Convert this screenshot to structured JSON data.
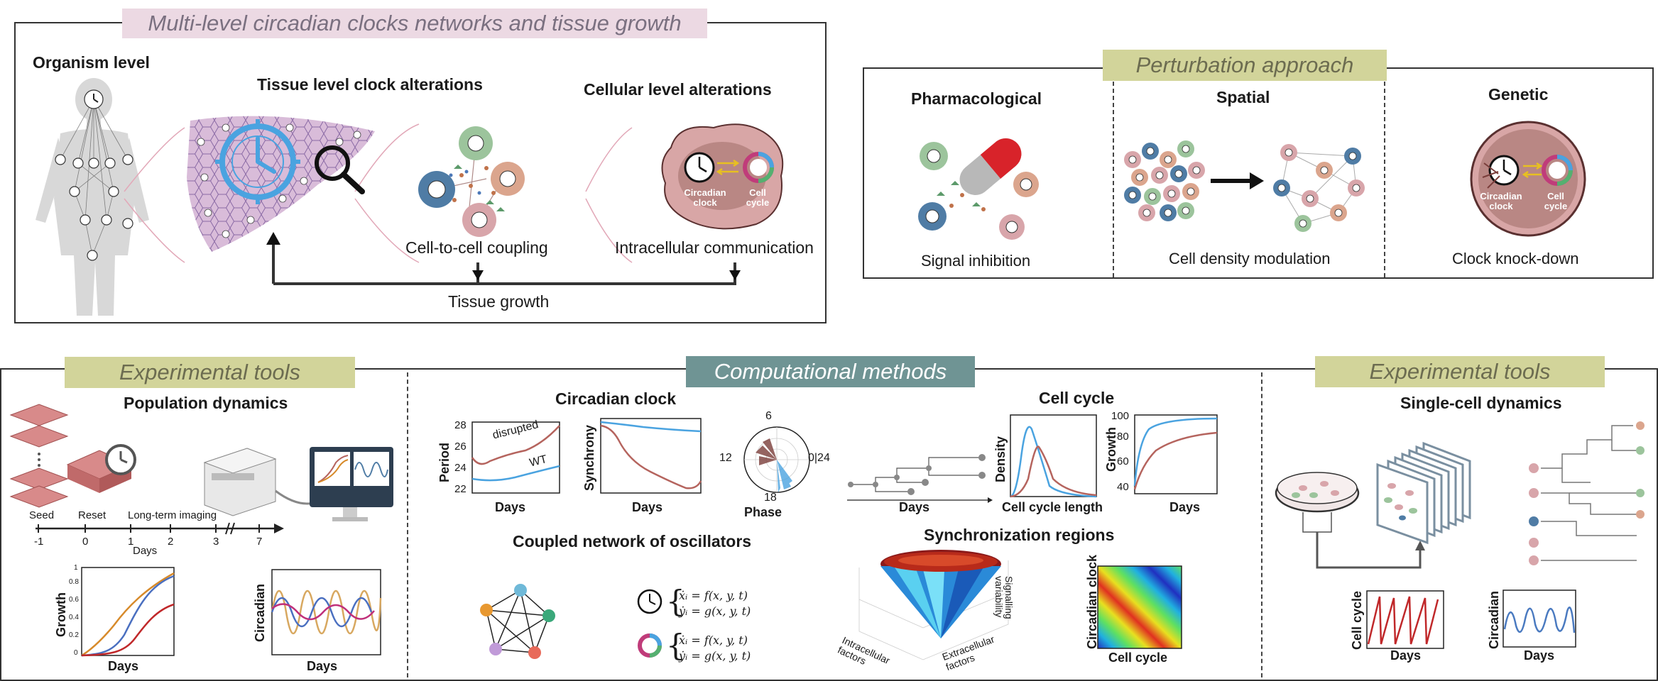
{
  "top_left": {
    "banner": "Multi-level circadian clocks networks and tissue growth",
    "organism": "Organism level",
    "tissue": "Tissue level clock alterations",
    "cellular": "Cellular level alterations",
    "coupling": "Cell-to-cell coupling",
    "intracellular": "Intracellular communication",
    "growth": "Tissue growth",
    "circadian_clock_label": "Circadian clock",
    "cell_cycle_label": "Cell cycle"
  },
  "perturbation": {
    "banner": "Perturbation approach",
    "pharm": "Pharmacological",
    "spatial": "Spatial",
    "genetic": "Genetic",
    "signal_inhibition": "Signal inhibition",
    "density_mod": "Cell density modulation",
    "knockdown": "Clock knock-down",
    "circadian_clock_label": "Circadian clock",
    "cell_cycle_label": "Cell cycle"
  },
  "exp_left": {
    "banner": "Experimental tools",
    "title": "Population dynamics",
    "timeline": {
      "events": [
        "Seed",
        "Reset",
        "Long-term imaging"
      ],
      "ticks": [
        "-1",
        "0",
        "1",
        "2",
        "3",
        "7"
      ],
      "xlabel": "Days"
    },
    "growth_plot": {
      "ylabel": "Growth",
      "xlabel": "Days",
      "yticks": [
        "0",
        "0.2",
        "0.4",
        "0.6",
        "0.8",
        "1"
      ]
    },
    "circadian_plot": {
      "ylabel": "Circadian",
      "xlabel": "Days"
    }
  },
  "comp": {
    "banner": "Computational methods",
    "circadian_title": "Circadian clock",
    "period_plot": {
      "ylabel": "Period",
      "xlabel": "Days",
      "yticks": [
        "22",
        "24",
        "26",
        "28"
      ],
      "series": [
        "disrupted",
        "WT"
      ]
    },
    "sync_plot": {
      "ylabel": "Synchrony",
      "xlabel": "Days"
    },
    "phase_plot": {
      "labels": [
        "6",
        "12",
        "0|24",
        "18"
      ],
      "xlabel": "Phase"
    },
    "cellcycle_title": "Cell cycle",
    "lineage_xlabel": "Days",
    "density_plot": {
      "ylabel": "Density",
      "xlabel": "Cell cycle length"
    },
    "growth_plot": {
      "ylabel": "Growth",
      "xlabel": "Days",
      "yticks": [
        "40",
        "60",
        "80",
        "100"
      ]
    },
    "coupled_title": "Coupled network of oscillators",
    "eq": {
      "x": "ẋᵢ = f(x, y, t)",
      "y": "ẏᵢ = g(x, y, t)"
    },
    "sync_regions_title": "Synchronization regions",
    "surface_labels": {
      "z": "Signalling variability",
      "left": "Intracellular factors",
      "right": "Extracellular factors"
    },
    "heatmap": {
      "ylabel": "Circadian clock",
      "xlabel": "Cell cycle"
    }
  },
  "exp_right": {
    "banner": "Experimental tools",
    "title": "Single-cell dynamics",
    "cellcycle_plot": {
      "ylabel": "Cell cycle",
      "xlabel": "Days"
    },
    "circadian_plot": {
      "ylabel": "Circadian",
      "xlabel": "Days"
    }
  },
  "colors": {
    "banner_pink": "#ecd9e3",
    "banner_olive": "#d2d49a",
    "banner_teal": "#6f9494",
    "blue": "#4aa3e0",
    "red": "#b5645e",
    "orange": "#d78a2a",
    "magenta": "#c03c7a",
    "liver": "#d9bcd9"
  }
}
